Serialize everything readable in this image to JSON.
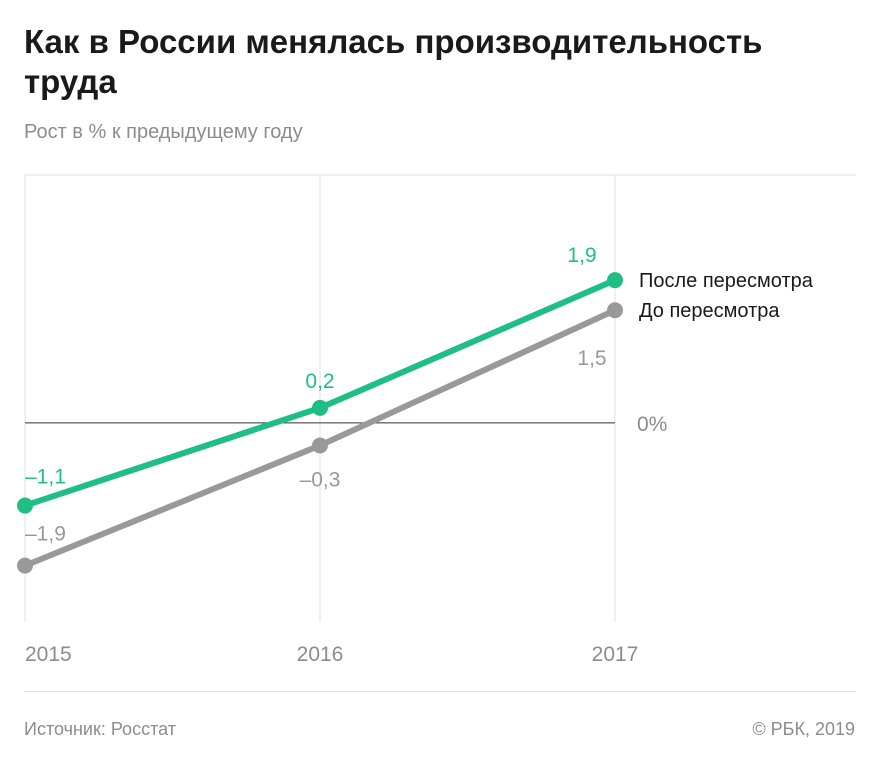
{
  "header": {
    "title": "Как в России менялась производительность труда",
    "subtitle": "Рост в % к предыдущему году"
  },
  "footer": {
    "source": "Источник: Росстат",
    "copyright": "© РБК, 2019"
  },
  "chart_data": {
    "type": "line",
    "title": "Как в России менялась производительность труда",
    "subtitle": "Рост в % к предыдущему году",
    "x": [
      "2015",
      "2016",
      "2017"
    ],
    "series": [
      {
        "name": "После пересмотра",
        "values": [
          -1.1,
          0.2,
          1.9
        ],
        "labels": [
          "–1,1",
          "0,2",
          "1,9"
        ],
        "color": "#1fbf83"
      },
      {
        "name": "До пересмотра",
        "values": [
          -1.9,
          -0.3,
          1.5
        ],
        "labels": [
          "–1,9",
          "–0,3",
          "1,5"
        ],
        "color": "#999999"
      }
    ],
    "zero_label": "0%",
    "ylim": [
      -2.65,
      3.3
    ],
    "grid": "vertical",
    "legend": "right"
  }
}
